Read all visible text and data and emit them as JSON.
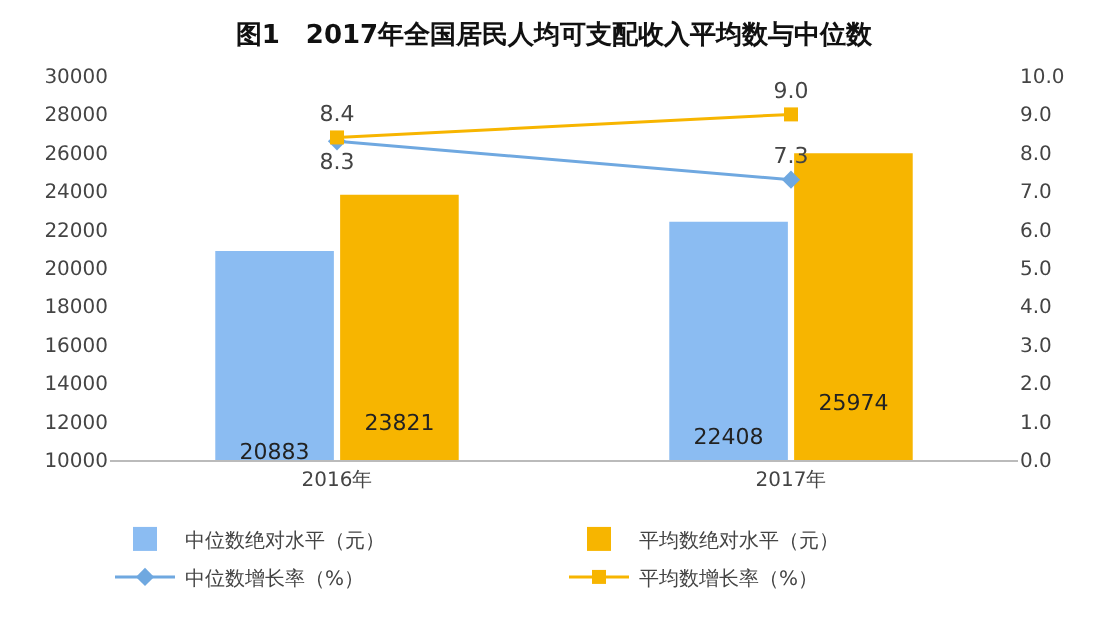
{
  "chart_data": {
    "type": "bar",
    "title": "图1　2017年全国居民人均可支配收入平均数与中位数",
    "categories": [
      "2016年",
      "2017年"
    ],
    "series": [
      {
        "name": "中位数绝对水平（元）",
        "color": "#8bbcf2",
        "values": [
          20883,
          22408
        ],
        "value_labels": [
          "20883",
          "22408"
        ]
      },
      {
        "name": "平均数绝对水平（元）",
        "color": "#f7b500",
        "values": [
          23821,
          25974
        ],
        "value_labels": [
          "23821",
          "25974"
        ]
      },
      {
        "name": "中位数增长率（%）",
        "type": "line",
        "axis": "y2",
        "color": "#6fa8e0",
        "marker": "diamond",
        "values": [
          8.3,
          7.3
        ],
        "value_labels": [
          "8.3",
          "7.3"
        ]
      },
      {
        "name": "平均数增长率（%）",
        "type": "line",
        "axis": "y2",
        "color": "#f7b500",
        "marker": "square",
        "values": [
          8.4,
          9.0
        ],
        "value_labels": [
          "8.4",
          "9.0"
        ]
      }
    ],
    "ylim": [
      10000,
      30000
    ],
    "yticks": [
      10000,
      12000,
      14000,
      16000,
      18000,
      20000,
      22000,
      24000,
      26000,
      28000,
      30000
    ],
    "y2lim": [
      0,
      10
    ],
    "y2ticks": [
      {
        "value": 0,
        "label": "0.0"
      },
      {
        "value": 1,
        "label": "1.0"
      },
      {
        "value": 2,
        "label": "2.0"
      },
      {
        "value": 3,
        "label": "3.0"
      },
      {
        "value": 4,
        "label": "4.0"
      },
      {
        "value": 5,
        "label": "5.0"
      },
      {
        "value": 6,
        "label": "6.0"
      },
      {
        "value": 7,
        "label": "7.0"
      },
      {
        "value": 8,
        "label": "8.0"
      },
      {
        "value": 9,
        "label": "9.0"
      },
      {
        "value": 10,
        "label": "10.0"
      }
    ],
    "grid": false,
    "legend": "bottom"
  }
}
